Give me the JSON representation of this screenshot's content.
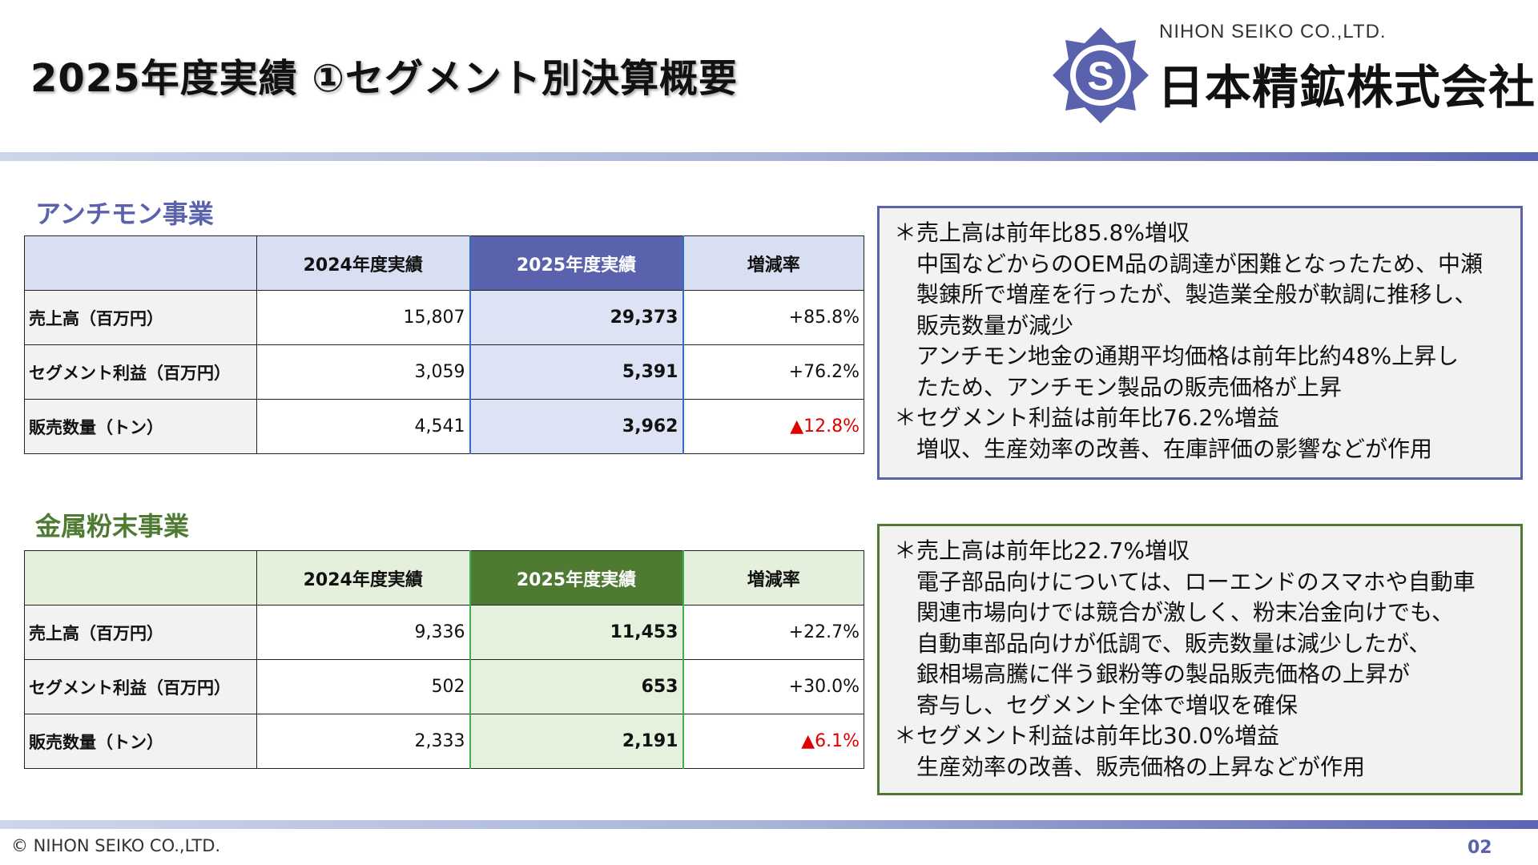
{
  "title": "2025年度実績 ①セグメント別決算概要",
  "logo": {
    "en": "NIHON SEIKO CO.,LTD.",
    "jp": "日本精鉱株式会社",
    "mark_letter": "S"
  },
  "colors": {
    "accent": "#5b62ad",
    "green": "#4e7a32",
    "negative": "#e00000"
  },
  "antimony": {
    "heading": "アンチモン事業",
    "headers": [
      "",
      "2024年度実績",
      "2025年度実績",
      "増減率"
    ],
    "rows": [
      {
        "label": "売上高（百万円）",
        "prev": "15,807",
        "cur": "29,373",
        "rate": "+85.8%"
      },
      {
        "label": "セグメント利益（百万円）",
        "prev": "3,059",
        "cur": "5,391",
        "rate": "+76.2%"
      },
      {
        "label": "販売数量（トン）",
        "prev": "4,541",
        "cur": "3,962",
        "rate": "▲12.8%"
      }
    ],
    "notes": [
      "＊売上高は前年比85.8%増収",
      "中国などからのOEM品の調達が困難となったため、中瀬",
      "製錬所で増産を行ったが、製造業全般が軟調に推移し、",
      "販売数量が減少",
      "アンチモン地金の通期平均価格は前年比約48%上昇し",
      "たため、アンチモン製品の販売価格が上昇",
      "＊セグメント利益は前年比76.2%増益",
      "増収、生産効率の改善、在庫評価の影響などが作用"
    ]
  },
  "metal_powder": {
    "heading": "金属粉末事業",
    "headers": [
      "",
      "2024年度実績",
      "2025年度実績",
      "増減率"
    ],
    "rows": [
      {
        "label": "売上高（百万円）",
        "prev": "9,336",
        "cur": "11,453",
        "rate": "+22.7%"
      },
      {
        "label": "セグメント利益（百万円）",
        "prev": "502",
        "cur": "653",
        "rate": "+30.0%"
      },
      {
        "label": "販売数量（トン）",
        "prev": "2,333",
        "cur": "2,191",
        "rate": "▲6.1%"
      }
    ],
    "notes": [
      "＊売上高は前年比22.7%増収",
      "電子部品向けについては、ローエンドのスマホや自動車",
      "関連市場向けでは競合が激しく、粉末冶金向けでも、",
      "自動車部品向けが低調で、販売数量は減少したが、",
      "銀相場高騰に伴う銀粉等の製品販売価格の上昇が",
      "寄与し、セグメント全体で増収を確保",
      "＊セグメント利益は前年比30.0%増益",
      "生産効率の改善、販売価格の上昇などが作用"
    ]
  },
  "footer": {
    "copyright": "© NIHON SEIKO CO.,LTD.",
    "page": "02"
  }
}
